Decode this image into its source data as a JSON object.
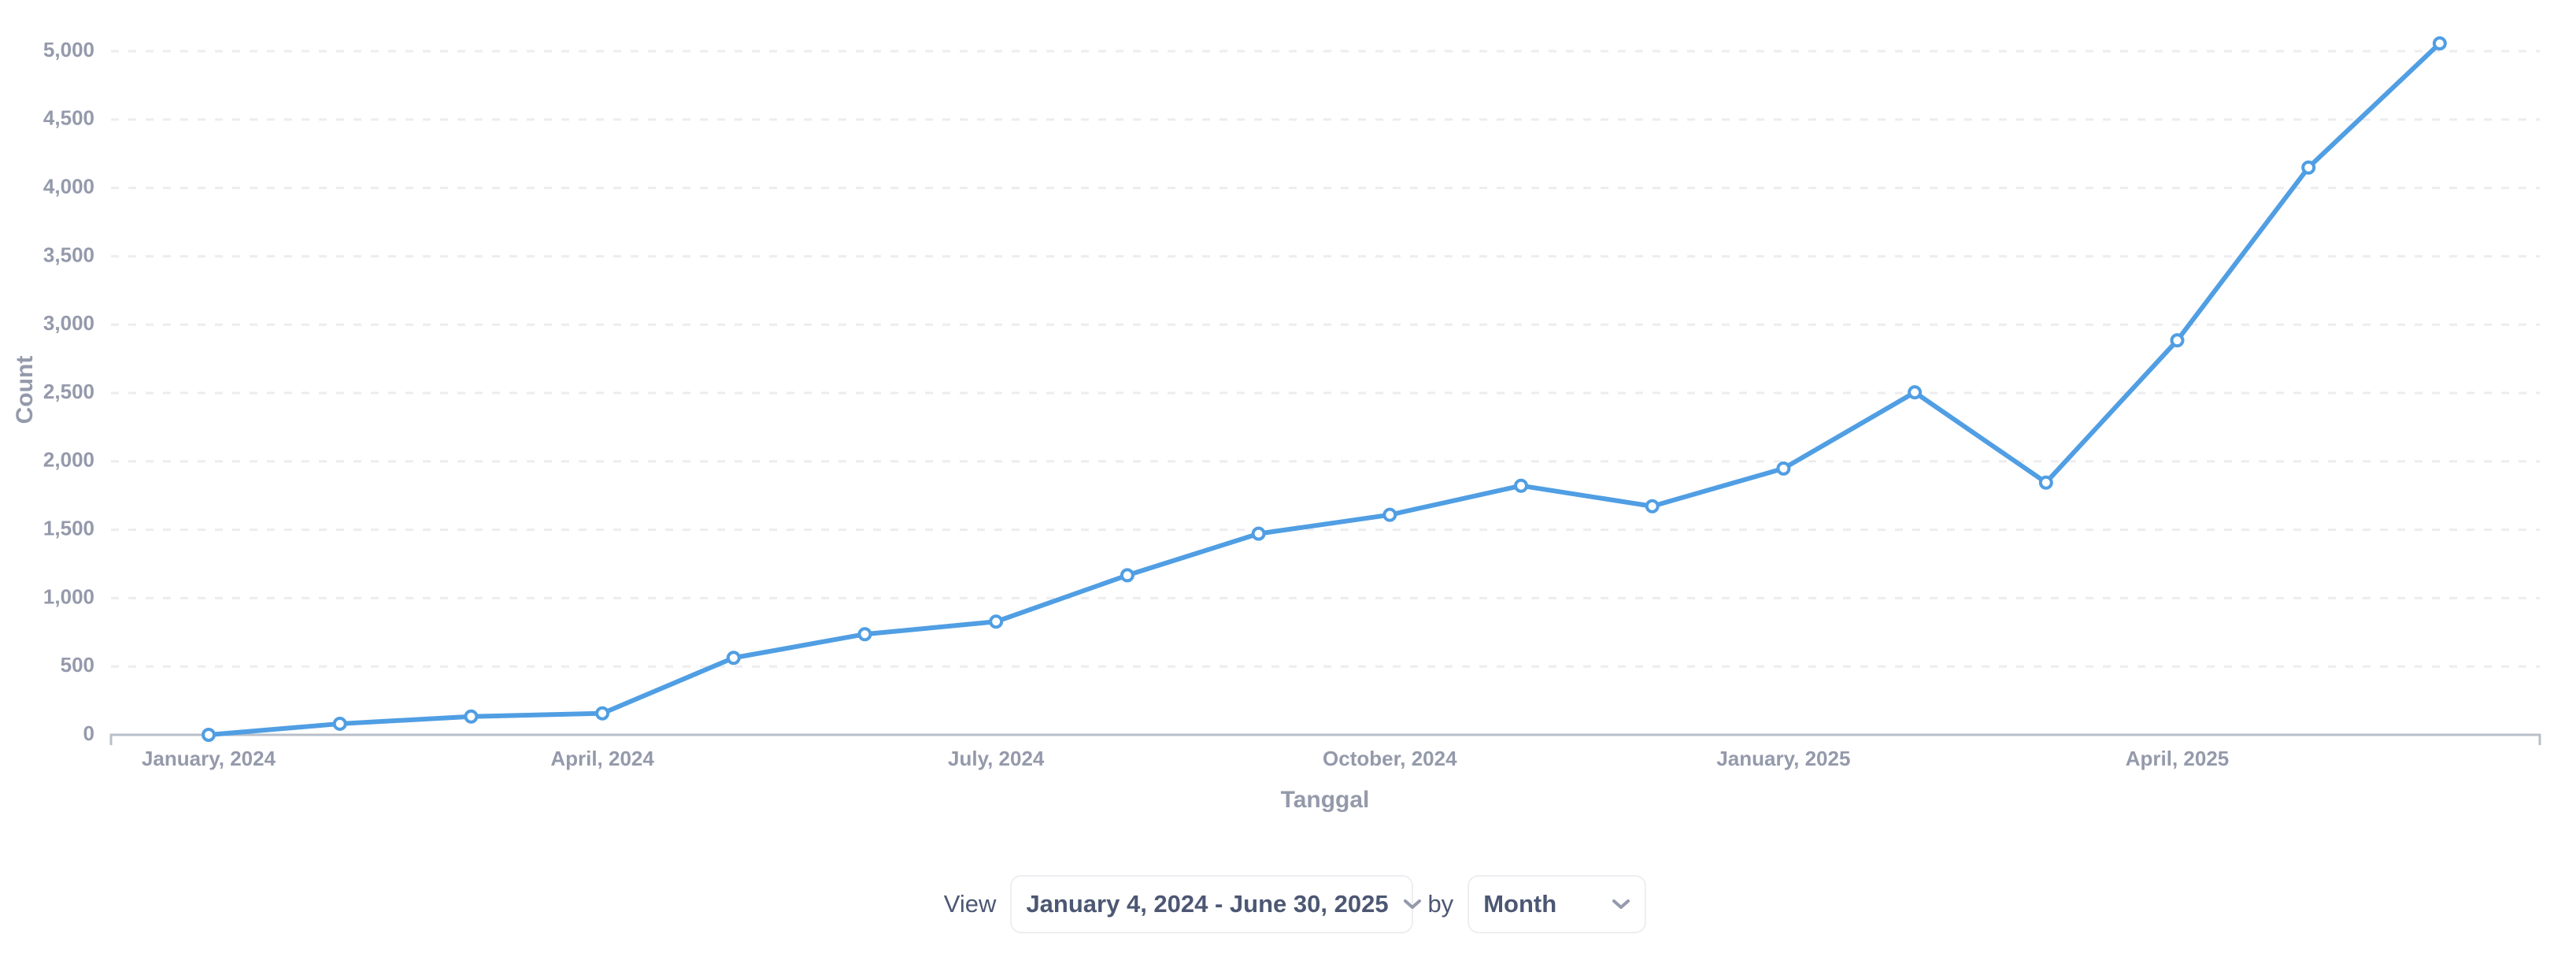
{
  "chart_data": {
    "type": "line",
    "title": "",
    "xlabel": "Tanggal",
    "ylabel": "Count",
    "ylim": [
      0,
      5000
    ],
    "yticks": [
      "0",
      "500",
      "1,000",
      "1,500",
      "2,000",
      "2,500",
      "3,000",
      "3,500",
      "4,000",
      "4,500",
      "5,000"
    ],
    "xtick_labels": [
      "January, 2024",
      "April, 2024",
      "July, 2024",
      "October, 2024",
      "January, 2025",
      "April, 2025"
    ],
    "grid": "horizontal dashed",
    "legend": "none",
    "x": [
      "2024-01",
      "2024-02",
      "2024-03",
      "2024-04",
      "2024-05",
      "2024-06",
      "2024-07",
      "2024-08",
      "2024-09",
      "2024-10",
      "2024-11",
      "2024-12",
      "2025-01",
      "2025-02",
      "2025-03",
      "2025-04",
      "2025-05",
      "2025-06"
    ],
    "series": [
      {
        "name": "Count",
        "color": "#509ee3",
        "values": [
          0,
          81,
          134,
          157,
          563,
          736,
          828,
          1167,
          1471,
          1609,
          1822,
          1672,
          1948,
          2505,
          1845,
          2885,
          4149,
          5057
        ]
      }
    ]
  },
  "controls": {
    "view_label": "View",
    "date_range": "January 4, 2024 - June 30, 2025",
    "by_label": "by",
    "period": "Month"
  },
  "colors": {
    "line": "#509ee3",
    "axis": "#b8bfca",
    "grid": "#ededf0",
    "label": "#949aab",
    "text": "#4c5773"
  }
}
